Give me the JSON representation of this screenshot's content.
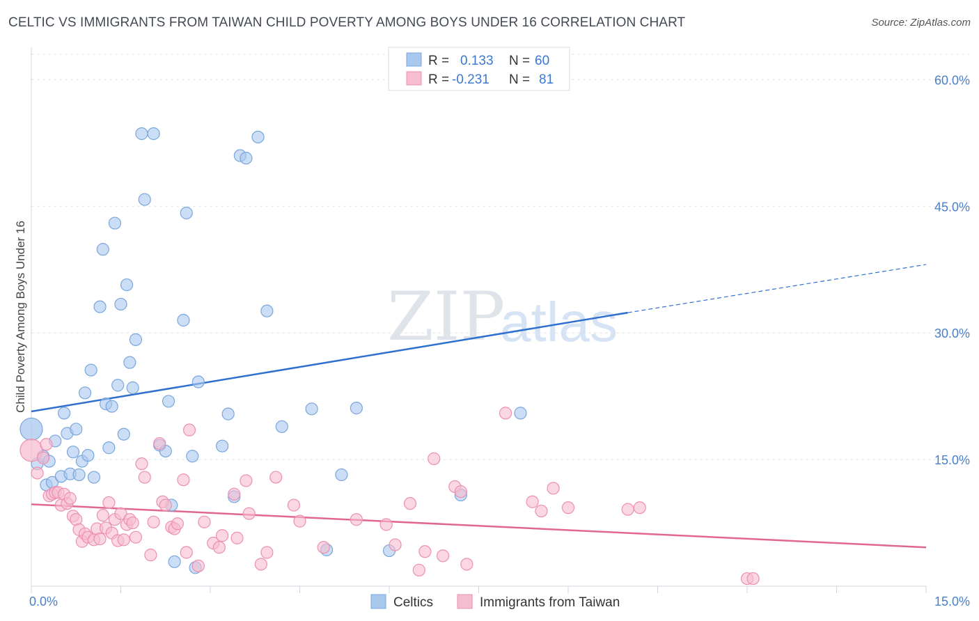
{
  "header": {
    "title": "CELTIC VS IMMIGRANTS FROM TAIWAN CHILD POVERTY AMONG BOYS UNDER 16 CORRELATION CHART",
    "source": "Source: ZipAtlas.com"
  },
  "watermark": {
    "zip": "ZIP",
    "atlas": "atlas"
  },
  "colors": {
    "celtic_fill": "#a9c8ee",
    "celtic_stroke": "#7aa6dc",
    "celtic_line": "#2f6fce",
    "taiwan_fill": "#f6bcd0",
    "taiwan_stroke": "#ec8fb0",
    "taiwan_line": "#e0678f",
    "tick_label": "#4a7fc8"
  },
  "legend": {
    "rows": [
      {
        "r_label": "R =",
        "r_value": "0.133",
        "n_label": "N =",
        "n_value": "60"
      },
      {
        "r_label": "R =",
        "r_value": "-0.231",
        "n_label": "N =",
        "n_value": "81"
      }
    ]
  },
  "chart_data": {
    "type": "scatter",
    "title": "CELTIC VS IMMIGRANTS FROM TAIWAN CHILD POVERTY AMONG BOYS UNDER 16 CORRELATION CHART",
    "xlabel": "",
    "ylabel": "Child Poverty Among Boys Under 16",
    "xlim": [
      0,
      15
    ],
    "ylim": [
      0,
      63
    ],
    "x_tick_labels": [
      "0.0%",
      "15.0%"
    ],
    "y_ticks": [
      15,
      30,
      45,
      60
    ],
    "y_tick_labels": [
      "15.0%",
      "30.0%",
      "45.0%",
      "60.0%"
    ],
    "grid": true,
    "legend_position": "top-center and bottom",
    "series": [
      {
        "name": "Celtics",
        "points": [
          [
            0.0,
            18.6
          ],
          [
            0.1,
            14.5
          ],
          [
            0.2,
            15.4
          ],
          [
            0.25,
            12.0
          ],
          [
            0.3,
            14.8
          ],
          [
            0.35,
            12.3
          ],
          [
            0.4,
            17.2
          ],
          [
            0.5,
            13.0
          ],
          [
            0.55,
            20.5
          ],
          [
            0.6,
            18.1
          ],
          [
            0.65,
            13.3
          ],
          [
            0.7,
            15.9
          ],
          [
            0.75,
            18.6
          ],
          [
            0.8,
            13.2
          ],
          [
            0.85,
            14.8
          ],
          [
            0.9,
            22.9
          ],
          [
            0.95,
            15.5
          ],
          [
            1.0,
            25.6
          ],
          [
            1.05,
            12.9
          ],
          [
            1.15,
            33.1
          ],
          [
            1.2,
            39.9
          ],
          [
            1.25,
            21.6
          ],
          [
            1.3,
            16.4
          ],
          [
            1.35,
            21.3
          ],
          [
            1.4,
            43.0
          ],
          [
            1.45,
            23.8
          ],
          [
            1.5,
            33.4
          ],
          [
            1.55,
            18.0
          ],
          [
            1.6,
            35.7
          ],
          [
            1.65,
            26.5
          ],
          [
            1.7,
            23.5
          ],
          [
            1.75,
            29.2
          ],
          [
            1.85,
            53.6
          ],
          [
            1.9,
            45.8
          ],
          [
            2.05,
            53.6
          ],
          [
            2.15,
            16.7
          ],
          [
            2.25,
            16.0
          ],
          [
            2.3,
            21.9
          ],
          [
            2.35,
            9.6
          ],
          [
            2.4,
            2.9
          ],
          [
            2.55,
            31.5
          ],
          [
            2.6,
            44.2
          ],
          [
            2.7,
            15.4
          ],
          [
            2.75,
            2.2
          ],
          [
            2.8,
            24.2
          ],
          [
            3.2,
            16.6
          ],
          [
            3.3,
            20.4
          ],
          [
            3.4,
            10.6
          ],
          [
            3.5,
            51.0
          ],
          [
            3.6,
            50.7
          ],
          [
            3.8,
            53.2
          ],
          [
            3.95,
            32.6
          ],
          [
            4.2,
            18.9
          ],
          [
            4.7,
            21.0
          ],
          [
            4.95,
            4.3
          ],
          [
            5.2,
            13.2
          ],
          [
            5.45,
            21.1
          ],
          [
            6.0,
            4.2
          ],
          [
            7.2,
            10.8
          ],
          [
            8.2,
            20.5
          ]
        ]
      },
      {
        "name": "Immigrants from Taiwan",
        "points": [
          [
            0.0,
            16.1
          ],
          [
            0.1,
            13.4
          ],
          [
            0.2,
            15.2
          ],
          [
            0.25,
            16.8
          ],
          [
            0.3,
            10.7
          ],
          [
            0.35,
            10.9
          ],
          [
            0.4,
            11.1
          ],
          [
            0.45,
            11.1
          ],
          [
            0.5,
            9.6
          ],
          [
            0.55,
            10.9
          ],
          [
            0.6,
            9.8
          ],
          [
            0.65,
            10.4
          ],
          [
            0.7,
            8.3
          ],
          [
            0.75,
            7.9
          ],
          [
            0.8,
            6.7
          ],
          [
            0.85,
            5.3
          ],
          [
            0.9,
            6.2
          ],
          [
            0.95,
            5.8
          ],
          [
            1.05,
            5.5
          ],
          [
            1.1,
            6.8
          ],
          [
            1.15,
            5.6
          ],
          [
            1.2,
            8.4
          ],
          [
            1.25,
            6.9
          ],
          [
            1.3,
            9.9
          ],
          [
            1.35,
            6.3
          ],
          [
            1.4,
            7.9
          ],
          [
            1.45,
            5.4
          ],
          [
            1.5,
            8.6
          ],
          [
            1.55,
            5.5
          ],
          [
            1.6,
            7.3
          ],
          [
            1.65,
            7.9
          ],
          [
            1.7,
            7.5
          ],
          [
            1.75,
            5.8
          ],
          [
            1.85,
            14.5
          ],
          [
            1.9,
            12.9
          ],
          [
            2.0,
            3.7
          ],
          [
            2.05,
            7.6
          ],
          [
            2.15,
            16.9
          ],
          [
            2.2,
            10.0
          ],
          [
            2.25,
            9.6
          ],
          [
            2.35,
            7.0
          ],
          [
            2.4,
            6.8
          ],
          [
            2.45,
            7.4
          ],
          [
            2.55,
            12.6
          ],
          [
            2.6,
            4.0
          ],
          [
            2.65,
            18.5
          ],
          [
            2.8,
            2.4
          ],
          [
            2.9,
            7.6
          ],
          [
            3.05,
            5.1
          ],
          [
            3.15,
            4.6
          ],
          [
            3.2,
            6.0
          ],
          [
            3.4,
            10.9
          ],
          [
            3.45,
            5.7
          ],
          [
            3.6,
            12.5
          ],
          [
            3.65,
            8.6
          ],
          [
            3.85,
            2.6
          ],
          [
            3.95,
            4.0
          ],
          [
            4.1,
            12.9
          ],
          [
            4.4,
            9.6
          ],
          [
            4.5,
            7.7
          ],
          [
            4.9,
            4.6
          ],
          [
            5.45,
            7.9
          ],
          [
            5.95,
            7.3
          ],
          [
            6.1,
            4.9
          ],
          [
            6.35,
            9.8
          ],
          [
            6.5,
            1.9
          ],
          [
            6.6,
            4.1
          ],
          [
            6.75,
            15.1
          ],
          [
            6.9,
            3.6
          ],
          [
            7.1,
            11.8
          ],
          [
            7.2,
            11.2
          ],
          [
            7.3,
            2.6
          ],
          [
            7.95,
            20.5
          ],
          [
            8.4,
            10.0
          ],
          [
            8.55,
            8.9
          ],
          [
            8.75,
            11.6
          ],
          [
            9.0,
            9.3
          ],
          [
            10.0,
            9.1
          ],
          [
            10.2,
            9.3
          ],
          [
            12.0,
            0.9
          ],
          [
            12.1,
            0.9
          ]
        ]
      }
    ],
    "trend_lines": [
      {
        "series": "Celtics",
        "x0": 0.0,
        "y0": 20.7,
        "x1": 10.0,
        "y1": 32.4,
        "dashed_to_x": 15.0,
        "dashed_to_y": 38.1
      },
      {
        "series": "Immigrants from Taiwan",
        "x0": 0.0,
        "y0": 9.7,
        "x1": 15.0,
        "y1": 4.6
      }
    ]
  }
}
